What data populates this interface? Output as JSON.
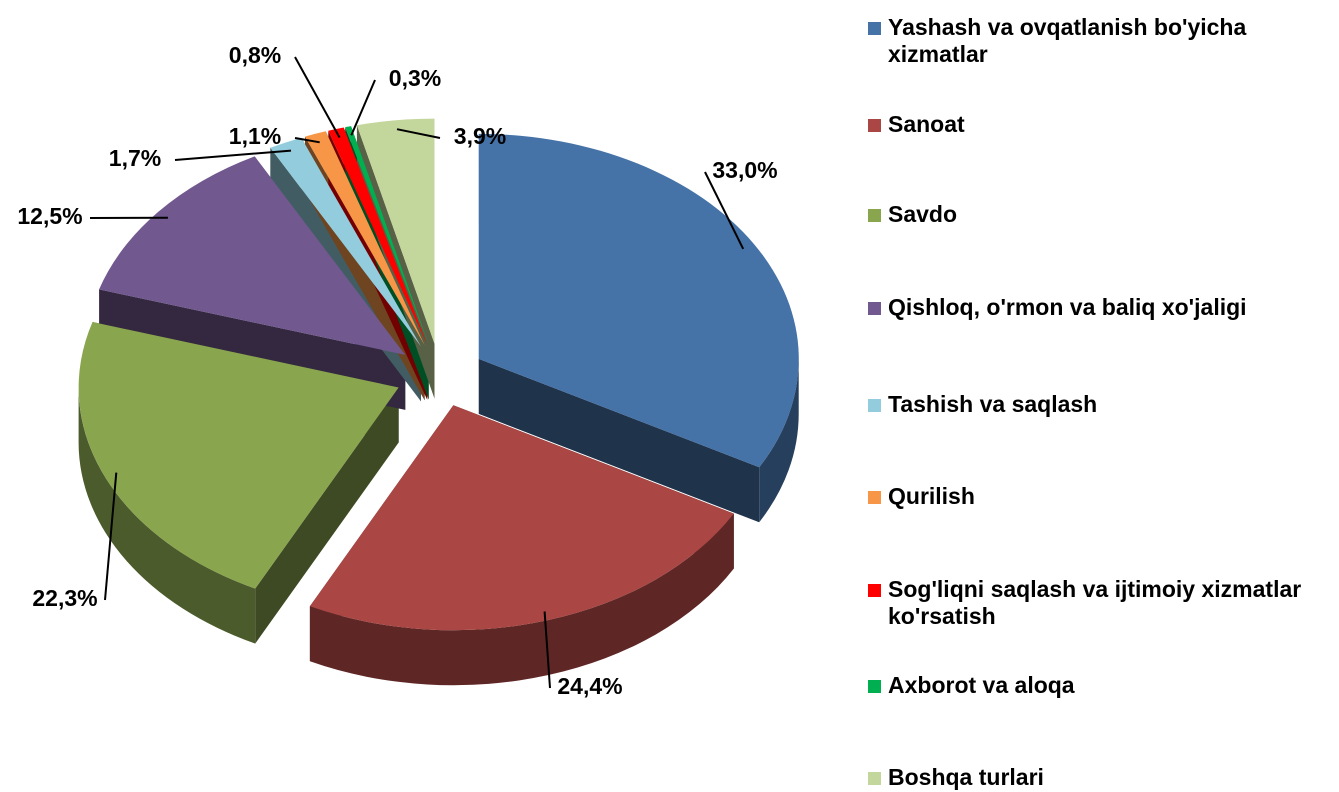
{
  "chart_data": {
    "type": "pie",
    "categories": [
      "Yashash va ovqatlanish bo'yicha xizmatlar",
      "Sanoat",
      "Savdo",
      "Qishloq, o'rmon va baliq xo'jaligi",
      "Tashish va saqlash",
      "Qurilish",
      "Sog'liqni saqlash va ijtimoiy xizmatlar ko'rsatish",
      "Axborot va aloqa",
      "Boshqa turlari"
    ],
    "values": [
      33.0,
      24.4,
      22.3,
      12.5,
      1.7,
      1.1,
      0.8,
      0.3,
      3.9
    ],
    "value_labels": [
      "33,0%",
      "24,4%",
      "22,3%",
      "12,5%",
      "1,7%",
      "1,1%",
      "0,8%",
      "0,3%",
      "3,9%"
    ],
    "colors": [
      "#4572a7",
      "#aa4643",
      "#89a54e",
      "#71588f",
      "#93cddd",
      "#f79646",
      "#ff0000",
      "#00b050",
      "#c3d69b"
    ],
    "legend": "right"
  }
}
